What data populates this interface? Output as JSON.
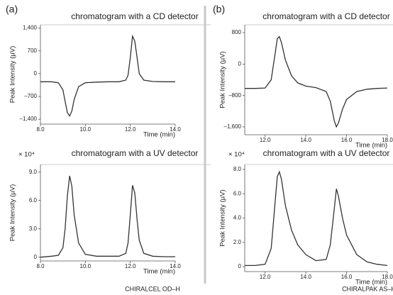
{
  "panel_labels": [
    "(a)",
    "(b)"
  ],
  "captions": [
    "CHIRALCEL OD–H",
    "CHIRALPAK AS–H"
  ],
  "chart_data": [
    {
      "type": "line",
      "title": "chromatogram with a CD detector",
      "x_label": "Time (min)",
      "y_label": "Peak Intensity (µV)",
      "xlim": [
        8,
        14
      ],
      "ylim": [
        -1550,
        1500
      ],
      "xticks": [
        {
          "value": 8,
          "label": "8.0"
        },
        {
          "value": 10,
          "label": "10.0"
        },
        {
          "value": 12,
          "label": "12.0"
        },
        {
          "value": 14,
          "label": "14.0"
        }
      ],
      "yticks": [
        {
          "value": 1400,
          "label": "1,400"
        },
        700,
        0,
        {
          "value": -700,
          "label": "–700"
        },
        {
          "value": -1400,
          "label": "–1,400"
        }
      ],
      "x": [
        8.0,
        8.5,
        8.8,
        9.0,
        9.1,
        9.2,
        9.3,
        9.4,
        9.5,
        9.7,
        10.0,
        10.5,
        11.0,
        11.5,
        11.8,
        11.9,
        12.0,
        12.1,
        12.2,
        12.3,
        12.4,
        12.6,
        13.0,
        13.5,
        14.0
      ],
      "series": [
        {
          "color": "#333333",
          "values": [
            -250,
            -250,
            -280,
            -500,
            -850,
            -1200,
            -1300,
            -1150,
            -800,
            -400,
            -280,
            -260,
            -250,
            -250,
            -200,
            -50,
            500,
            1150,
            1000,
            500,
            0,
            -200,
            -240,
            -250,
            -250
          ]
        }
      ]
    },
    {
      "type": "line",
      "title": "chromatogram with a UV detector",
      "x_label": "Time (min)",
      "y_label": "Peak Intensity (µV)",
      "y_multiplier": "× 10⁴",
      "xlim": [
        8,
        14
      ],
      "ylim": [
        -0.4,
        9.8
      ],
      "xticks": [
        {
          "value": 8,
          "label": "8.0"
        },
        {
          "value": 10,
          "label": "10.0"
        },
        {
          "value": 12,
          "label": "12.0"
        },
        {
          "value": 14,
          "label": "14.0"
        }
      ],
      "yticks": [
        0,
        {
          "value": 3,
          "label": "3.0"
        },
        {
          "value": 6,
          "label": "6.0"
        },
        {
          "value": 9,
          "label": "9.0"
        }
      ],
      "x": [
        8.0,
        8.5,
        8.8,
        9.0,
        9.1,
        9.2,
        9.3,
        9.4,
        9.5,
        9.7,
        10.0,
        10.5,
        11.0,
        11.5,
        11.8,
        11.9,
        12.0,
        12.1,
        12.2,
        12.3,
        12.4,
        12.6,
        13.0,
        13.5,
        14.0
      ],
      "series": [
        {
          "color": "#333333",
          "values": [
            0,
            0.1,
            0.2,
            1.0,
            3.0,
            6.5,
            8.6,
            7.5,
            4.5,
            1.5,
            0.3,
            0.1,
            0.1,
            0.1,
            0.4,
            1.5,
            4.5,
            7.6,
            6.8,
            4.0,
            1.8,
            0.4,
            0.1,
            0.05,
            0.05
          ]
        }
      ]
    },
    {
      "type": "line",
      "title": "chromatogram with a CD detector",
      "x_label": "Time (min)",
      "y_label": "Peak Intensity (µV)",
      "xlim": [
        11,
        18
      ],
      "ylim": [
        -1800,
        1000
      ],
      "xticks": [
        {
          "value": 12,
          "label": "12.0"
        },
        {
          "value": 14,
          "label": "14.0"
        },
        {
          "value": 16,
          "label": "16.0"
        },
        {
          "value": 18,
          "label": "18.0"
        }
      ],
      "yticks": [
        800,
        0,
        {
          "value": -800,
          "label": "–800"
        },
        {
          "value": -1600,
          "label": "–1,600"
        }
      ],
      "x": [
        11.0,
        11.5,
        12.0,
        12.3,
        12.5,
        12.6,
        12.7,
        12.8,
        13.0,
        13.3,
        13.6,
        14.0,
        14.5,
        15.0,
        15.2,
        15.4,
        15.5,
        15.6,
        15.8,
        16.0,
        16.5,
        17.0,
        17.5,
        18.0
      ],
      "series": [
        {
          "color": "#333333",
          "values": [
            -620,
            -620,
            -610,
            -400,
            300,
            650,
            700,
            550,
            100,
            -300,
            -480,
            -560,
            -600,
            -700,
            -950,
            -1450,
            -1600,
            -1500,
            -1150,
            -900,
            -700,
            -640,
            -620,
            -610
          ]
        }
      ]
    },
    {
      "type": "line",
      "title": "chromatogram with a UV detector",
      "x_label": "Time (min)",
      "y_label": "Peak Intensity (µV)",
      "y_multiplier": "× 10⁴",
      "xlim": [
        11,
        18
      ],
      "ylim": [
        -0.4,
        8.4
      ],
      "xticks": [
        {
          "value": 12,
          "label": "12.0"
        },
        {
          "value": 14,
          "label": "14.0"
        },
        {
          "value": 16,
          "label": "16.0"
        },
        {
          "value": 18,
          "label": "18.0"
        }
      ],
      "yticks": [
        0,
        {
          "value": 2,
          "label": "2.0"
        },
        {
          "value": 4,
          "label": "4.0"
        },
        {
          "value": 6,
          "label": "6.0"
        },
        {
          "value": 8,
          "label": "8.0"
        }
      ],
      "x": [
        11.0,
        11.5,
        12.0,
        12.3,
        12.5,
        12.6,
        12.7,
        12.8,
        13.0,
        13.3,
        13.6,
        14.0,
        14.5,
        15.0,
        15.2,
        15.4,
        15.5,
        15.6,
        15.8,
        16.0,
        16.5,
        17.0,
        17.5,
        18.0
      ],
      "series": [
        {
          "color": "#333333",
          "values": [
            0.1,
            0.1,
            0.2,
            1.5,
            5.5,
            7.4,
            7.8,
            7.2,
            5.0,
            3.0,
            1.8,
            1.0,
            0.5,
            0.6,
            1.8,
            4.8,
            6.4,
            5.8,
            4.0,
            2.6,
            1.0,
            0.4,
            0.2,
            0.1
          ]
        }
      ]
    }
  ]
}
